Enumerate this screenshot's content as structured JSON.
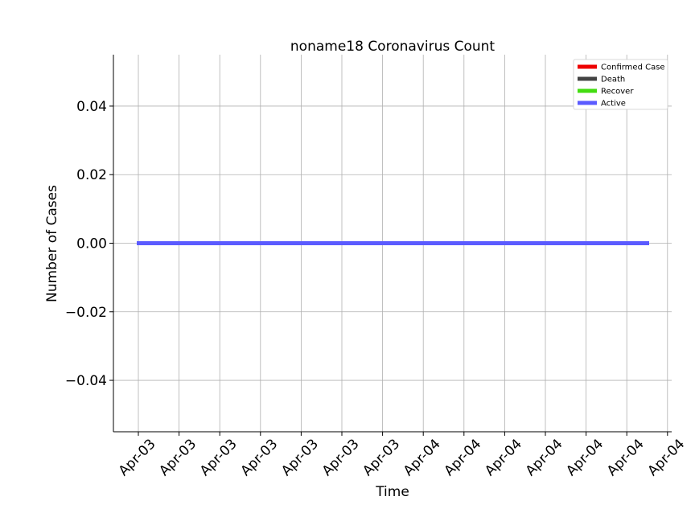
{
  "chart_data": {
    "type": "line",
    "title": "noname18 Coronavirus Count",
    "xlabel": "Time",
    "ylabel": "Number of Cases",
    "ylim": [
      -0.055,
      0.055
    ],
    "yticks": [
      0.04,
      0.02,
      0.0,
      -0.02,
      -0.04
    ],
    "ytick_labels": [
      "0.04",
      "0.02",
      "0.00",
      "−0.02",
      "−0.04"
    ],
    "xtick_labels": [
      "Apr-03",
      "Apr-03",
      "Apr-03",
      "Apr-03",
      "Apr-03",
      "Apr-03",
      "Apr-03",
      "Apr-04",
      "Apr-04",
      "Apr-04",
      "Apr-04",
      "Apr-04",
      "Apr-04",
      "Apr-04"
    ],
    "grid": true,
    "legend_position": "top-right",
    "series": [
      {
        "name": "Confirmed Case",
        "color": "#ee0000",
        "values": [
          0,
          0
        ]
      },
      {
        "name": "Death",
        "color": "#444444",
        "values": [
          0,
          0
        ]
      },
      {
        "name": "Recover",
        "color": "#44dd11",
        "values": [
          0,
          0
        ]
      },
      {
        "name": "Active",
        "color": "#5b5bff",
        "values": [
          0,
          0
        ]
      }
    ]
  }
}
